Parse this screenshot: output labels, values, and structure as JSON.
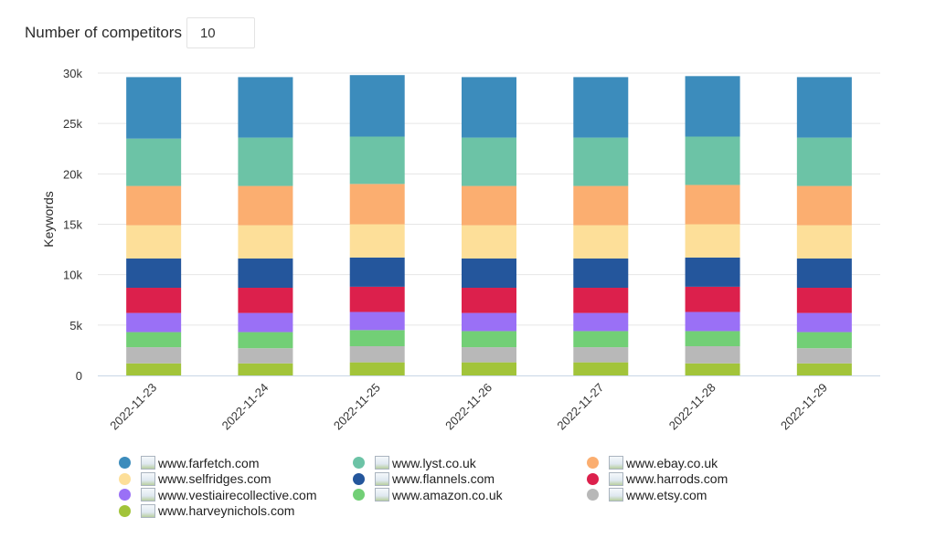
{
  "controls": {
    "competitors_label": "Number of competitors",
    "competitors_value": "10"
  },
  "chart_data": {
    "type": "bar",
    "stacked": true,
    "ylabel": "Keywords",
    "xlabel": "",
    "ylim": [
      0,
      30000
    ],
    "yticks": [
      0,
      5000,
      10000,
      15000,
      20000,
      25000,
      30000
    ],
    "ytick_labels": [
      "0",
      "5k",
      "10k",
      "15k",
      "20k",
      "25k",
      "30k"
    ],
    "grid": true,
    "legend_position": "bottom",
    "categories": [
      "2022-11-23",
      "2022-11-24",
      "2022-11-25",
      "2022-11-26",
      "2022-11-27",
      "2022-11-28",
      "2022-11-29"
    ],
    "series": [
      {
        "name": "www.farfetch.com",
        "color": "#3c8cbc",
        "values": [
          6100,
          6000,
          6100,
          6000,
          6000,
          6000,
          6000
        ]
      },
      {
        "name": "www.lyst.co.uk",
        "color": "#6cc3a6",
        "values": [
          4700,
          4800,
          4700,
          4800,
          4800,
          4800,
          4800
        ]
      },
      {
        "name": "www.ebay.co.uk",
        "color": "#fbae70",
        "values": [
          3900,
          3900,
          4000,
          3900,
          3900,
          3900,
          3900
        ]
      },
      {
        "name": "www.selfridges.com",
        "color": "#fddf99",
        "values": [
          3300,
          3300,
          3300,
          3300,
          3300,
          3300,
          3300
        ]
      },
      {
        "name": "www.flannels.com",
        "color": "#24569c",
        "values": [
          2900,
          2900,
          2900,
          2900,
          2900,
          2900,
          2900
        ]
      },
      {
        "name": "www.harrods.com",
        "color": "#dc204c",
        "values": [
          2500,
          2500,
          2500,
          2500,
          2500,
          2500,
          2500
        ]
      },
      {
        "name": "www.vestiairecollective.com",
        "color": "#9a70f6",
        "values": [
          1900,
          1900,
          1800,
          1800,
          1800,
          1900,
          1900
        ]
      },
      {
        "name": "www.amazon.co.uk",
        "color": "#72cf76",
        "values": [
          1500,
          1600,
          1600,
          1600,
          1600,
          1500,
          1600
        ]
      },
      {
        "name": "www.etsy.com",
        "color": "#b8b8b8",
        "values": [
          1600,
          1500,
          1600,
          1500,
          1500,
          1700,
          1500
        ]
      },
      {
        "name": "www.harveynichols.com",
        "color": "#a2c43a",
        "values": [
          1200,
          1200,
          1300,
          1300,
          1300,
          1200,
          1200
        ]
      }
    ]
  }
}
